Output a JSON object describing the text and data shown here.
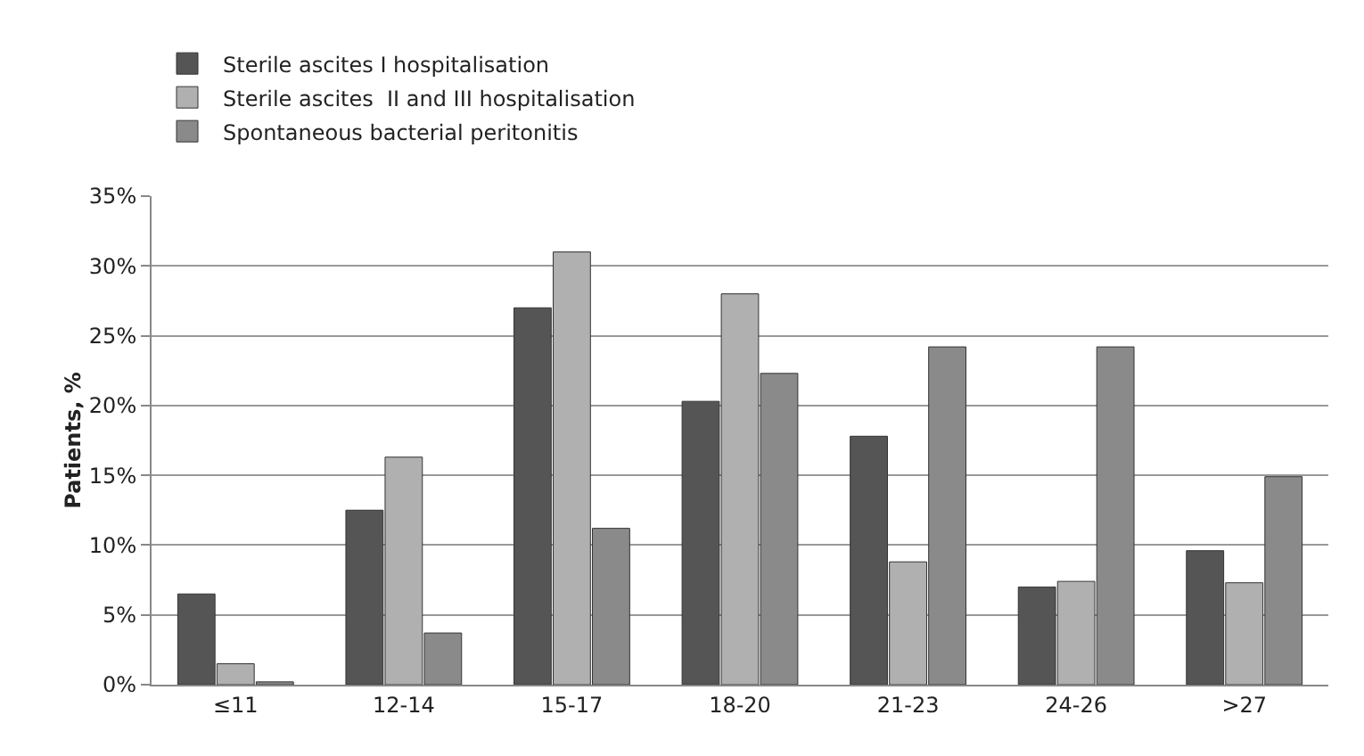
{
  "chart_data": {
    "type": "bar",
    "ylabel": "Patients, %",
    "categories": [
      "≤11",
      "12-14",
      "15-17",
      "18-20",
      "21-23",
      "24-26",
      ">27"
    ],
    "series": [
      {
        "name": "Sterile ascites I hospitalisation",
        "color": "#555555",
        "values": [
          6.5,
          12.5,
          27,
          20.3,
          17.8,
          7,
          9.6
        ]
      },
      {
        "name": "Sterile ascites  II and III hospitalisation",
        "color": "#b0b0b0",
        "values": [
          1.5,
          16.3,
          31,
          28,
          8.8,
          7.4,
          7.3
        ]
      },
      {
        "name": "Spontaneous bacterial peritonitis",
        "color": "#8a8a8a",
        "values": [
          0.2,
          3.7,
          11.2,
          22.3,
          24.2,
          24.2,
          14.9
        ]
      }
    ],
    "ylim": [
      0,
      35
    ],
    "yticks": [
      {
        "value": 0,
        "label": "0%"
      },
      {
        "value": 5,
        "label": "5%"
      },
      {
        "value": 10,
        "label": "10%"
      },
      {
        "value": 15,
        "label": "15%"
      },
      {
        "value": 20,
        "label": "20%"
      },
      {
        "value": 25,
        "label": "25%"
      },
      {
        "value": 30,
        "label": "30%"
      },
      {
        "value": 35,
        "label": "35%"
      }
    ],
    "grid": "y",
    "legend": "top"
  }
}
